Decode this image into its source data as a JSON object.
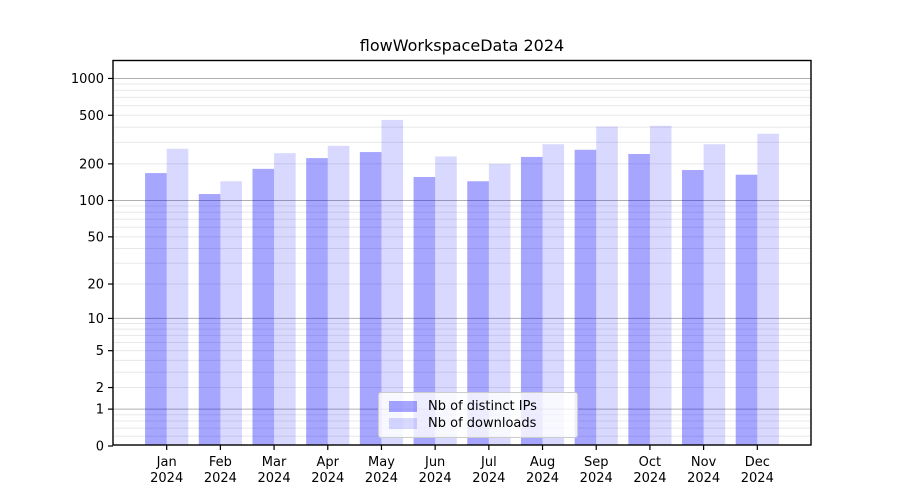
{
  "title": "flowWorkspaceData 2024",
  "chart_data": {
    "type": "bar",
    "title": "flowWorkspaceData 2024",
    "categories": [
      "Jan 2024",
      "Feb 2024",
      "Mar 2024",
      "Apr 2024",
      "May 2024",
      "Jun 2024",
      "Jul 2024",
      "Aug 2024",
      "Sep 2024",
      "Oct 2024",
      "Nov 2024",
      "Dec 2024"
    ],
    "series": [
      {
        "name": "Nb of distinct IPs",
        "color": "rgba(0,0,255,0.35)",
        "values": [
          168,
          113,
          182,
          223,
          250,
          156,
          144,
          228,
          261,
          241,
          178,
          163
        ]
      },
      {
        "name": "Nb of downloads",
        "color": "rgba(0,0,255,0.15)",
        "values": [
          266,
          144,
          245,
          281,
          458,
          230,
          200,
          290,
          404,
          410,
          290,
          353
        ]
      }
    ],
    "xlabel": "",
    "ylabel": "",
    "yscale": "symlog",
    "y_tick_labels": [
      "1000",
      "500",
      "200",
      "100",
      "50",
      "20",
      "10",
      "5",
      "2",
      "1",
      "0"
    ],
    "y_tick_values": [
      1000,
      500,
      200,
      100,
      50,
      20,
      10,
      5,
      2,
      1,
      0
    ],
    "ylim": [
      0,
      1400
    ],
    "grid": "both",
    "legend_position": "lower center"
  },
  "colors": {
    "major_grid": "#b0b0b0",
    "minor_grid": "#e8e8e8",
    "spine": "#000000",
    "text": "#000000",
    "background": "#ffffff"
  }
}
